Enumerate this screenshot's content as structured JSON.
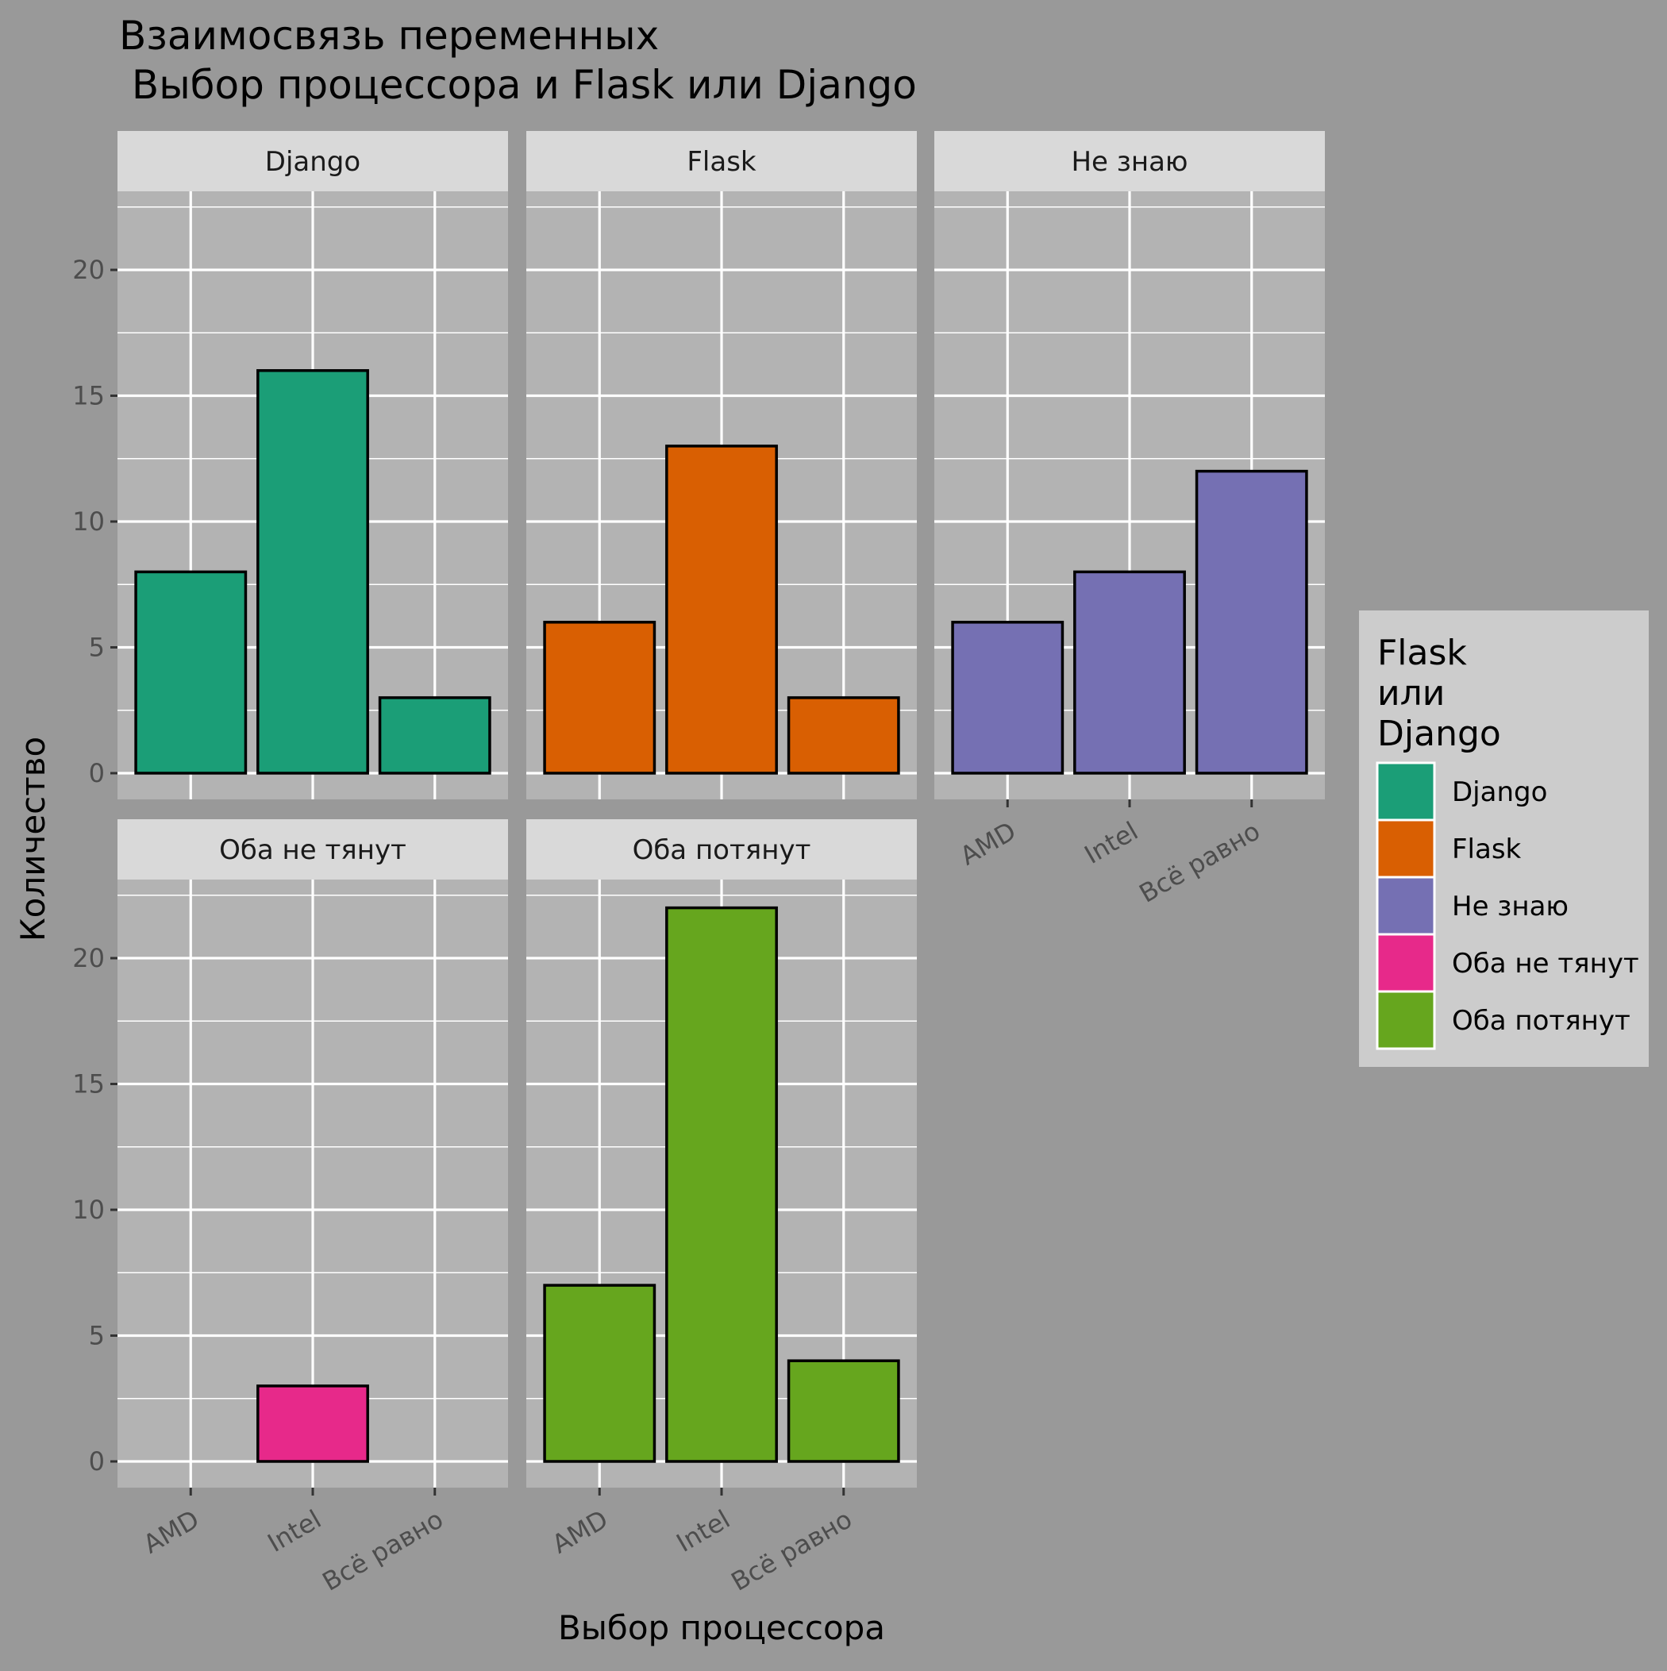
{
  "chart_data": {
    "type": "bar",
    "title_lines": [
      "Взаимосвязь переменных",
      " Выбор процессора и Flask или Django"
    ],
    "xlabel": "Выбор процессора",
    "ylabel": "Количество",
    "categories": [
      "AMD",
      "Intel",
      "Всё равно"
    ],
    "ylim": [
      0,
      23
    ],
    "yticks": [
      0,
      5,
      10,
      15,
      20
    ],
    "yticks_labels": [
      "0",
      "5",
      "10",
      "15",
      "20"
    ],
    "grid": true,
    "legend": {
      "title_lines": [
        "Flask",
        "или",
        "Django"
      ],
      "placement": "right"
    },
    "panels": [
      {
        "name": "Django",
        "values": [
          8,
          16,
          3
        ],
        "color": "#1b9e77"
      },
      {
        "name": "Flask",
        "values": [
          6,
          13,
          3
        ],
        "color": "#d95f02"
      },
      {
        "name": "Не знаю",
        "values": [
          6,
          8,
          12
        ],
        "color": "#7570b3"
      },
      {
        "name": "Оба не тянут",
        "values": [
          0,
          3,
          0
        ],
        "color": "#e7298a"
      },
      {
        "name": "Оба потянут",
        "values": [
          7,
          22,
          4
        ],
        "color": "#66a61e"
      }
    ]
  },
  "colors": {
    "page_background": "#999999",
    "panel_background": "#b3b3b3",
    "strip_background": "#d9d9d9",
    "legend_background": "#cccccc",
    "grid": "#ffffff",
    "bar_outline": "#000000"
  }
}
